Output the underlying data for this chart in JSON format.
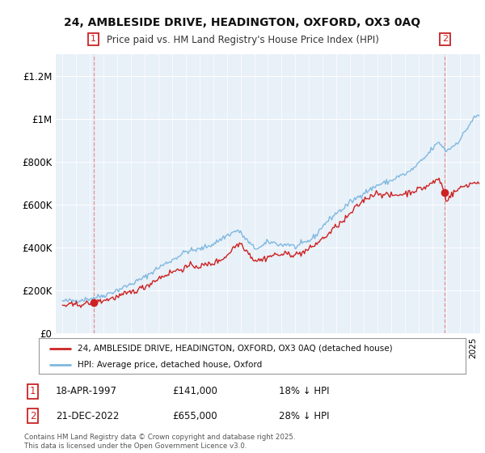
{
  "title": "24, AMBLESIDE DRIVE, HEADINGTON, OXFORD, OX3 0AQ",
  "subtitle": "Price paid vs. HM Land Registry's House Price Index (HPI)",
  "bg_color": "#ffffff",
  "plot_bg_color": "#e8f0f8",
  "sale1_x": 1997.25,
  "sale1_price": 141000,
  "sale2_x": 2022.917,
  "sale2_price": 655000,
  "legend1": "24, AMBLESIDE DRIVE, HEADINGTON, OXFORD, OX3 0AQ (detached house)",
  "legend2": "HPI: Average price, detached house, Oxford",
  "copyright": "Contains HM Land Registry data © Crown copyright and database right 2025.\nThis data is licensed under the Open Government Licence v3.0.",
  "hpi_color": "#7fb8e0",
  "price_color": "#cc2222",
  "vline_color": "#e08080",
  "ylim": [
    0,
    1300000
  ],
  "yticks": [
    0,
    200000,
    400000,
    600000,
    800000,
    1000000,
    1200000
  ],
  "ytick_labels": [
    "£0",
    "£200K",
    "£400K",
    "£600K",
    "£800K",
    "£1M",
    "£1.2M"
  ],
  "xstart": 1994.5,
  "xend": 2025.5,
  "ann1_date": "18-APR-1997",
  "ann1_price": "£141,000",
  "ann1_hpi": "18% ↓ HPI",
  "ann2_date": "21-DEC-2022",
  "ann2_price": "£655,000",
  "ann2_hpi": "28% ↓ HPI"
}
